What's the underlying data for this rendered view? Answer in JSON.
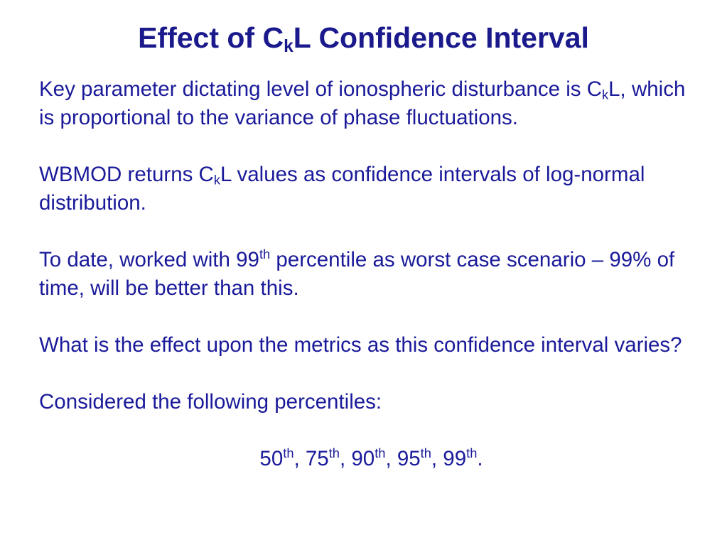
{
  "title": [
    "Effect of C",
    "k",
    "L Confidence Interval"
  ],
  "paragraphs": [
    [
      "Key parameter dictating level of ionospheric disturbance is C",
      "k",
      "L, which is proportional to the variance of phase fluctuations."
    ],
    [
      "WBMOD returns C",
      "k",
      "L values as confidence intervals of log-normal distribution."
    ],
    [
      "To date, worked with 99",
      "th",
      " percentile as worst case scenario – 99% of time, will be better than this."
    ],
    [
      "What is the effect upon the metrics as this confidence interval varies?"
    ],
    [
      "Considered the following percentiles:"
    ],
    [
      "50",
      "th",
      ", 75",
      "th",
      ", 90",
      "th",
      ", 95",
      "th",
      ", 99",
      "th",
      "."
    ]
  ]
}
